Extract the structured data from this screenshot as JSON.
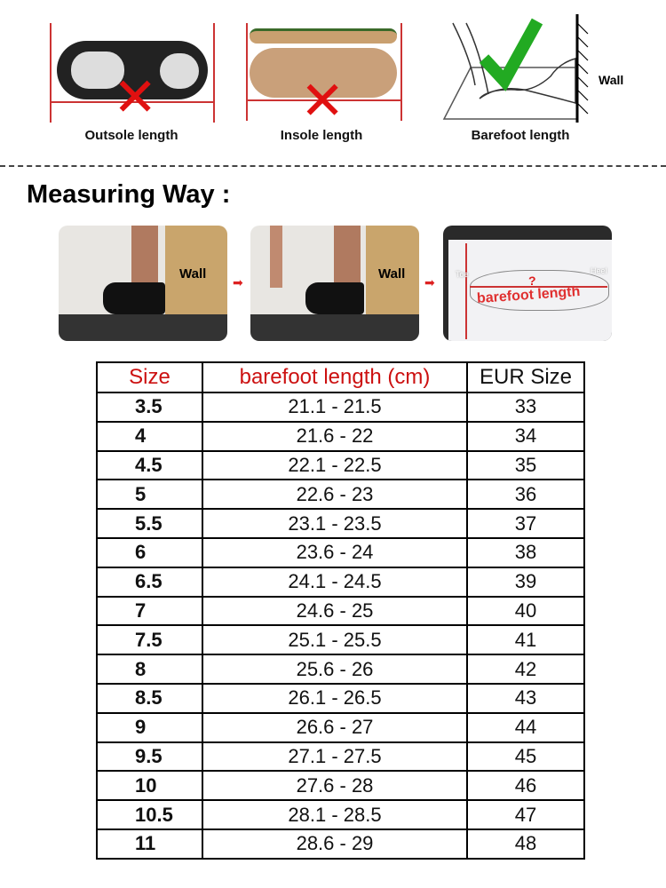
{
  "methods": [
    {
      "label": "Outsole length",
      "correct": false
    },
    {
      "label": "Insole length",
      "correct": false
    },
    {
      "label": "Barefoot length",
      "correct": true,
      "wall_label": "Wall"
    }
  ],
  "section_title": "Measuring Way :",
  "photos": [
    {
      "label": "Wall"
    },
    {
      "label": "Wall"
    },
    {
      "label": "barefoot length",
      "toe": "Toe",
      "heel": "Heel",
      "mark": "?"
    }
  ],
  "colors": {
    "red": "#d01818",
    "green": "#22aa22",
    "header_red": "#cc1111"
  },
  "table": {
    "headers": [
      "Size",
      "barefoot length (cm)",
      "EUR Size"
    ],
    "rows": [
      [
        "3.5",
        "21.1 - 21.5",
        "33"
      ],
      [
        "4",
        "21.6 - 22",
        "34"
      ],
      [
        "4.5",
        "22.1 - 22.5",
        "35"
      ],
      [
        "5",
        "22.6 - 23",
        "36"
      ],
      [
        "5.5",
        "23.1 - 23.5",
        "37"
      ],
      [
        "6",
        "23.6 - 24",
        "38"
      ],
      [
        "6.5",
        "24.1 - 24.5",
        "39"
      ],
      [
        "7",
        "24.6 - 25",
        "40"
      ],
      [
        "7.5",
        "25.1 - 25.5",
        "41"
      ],
      [
        "8",
        "25.6 - 26",
        "42"
      ],
      [
        "8.5",
        "26.1 - 26.5",
        "43"
      ],
      [
        "9",
        "26.6 - 27",
        "44"
      ],
      [
        "9.5",
        "27.1 - 27.5",
        "45"
      ],
      [
        "10",
        "27.6 - 28",
        "46"
      ],
      [
        "10.5",
        "28.1 - 28.5",
        "47"
      ],
      [
        "11",
        "28.6 - 29",
        "48"
      ]
    ]
  }
}
